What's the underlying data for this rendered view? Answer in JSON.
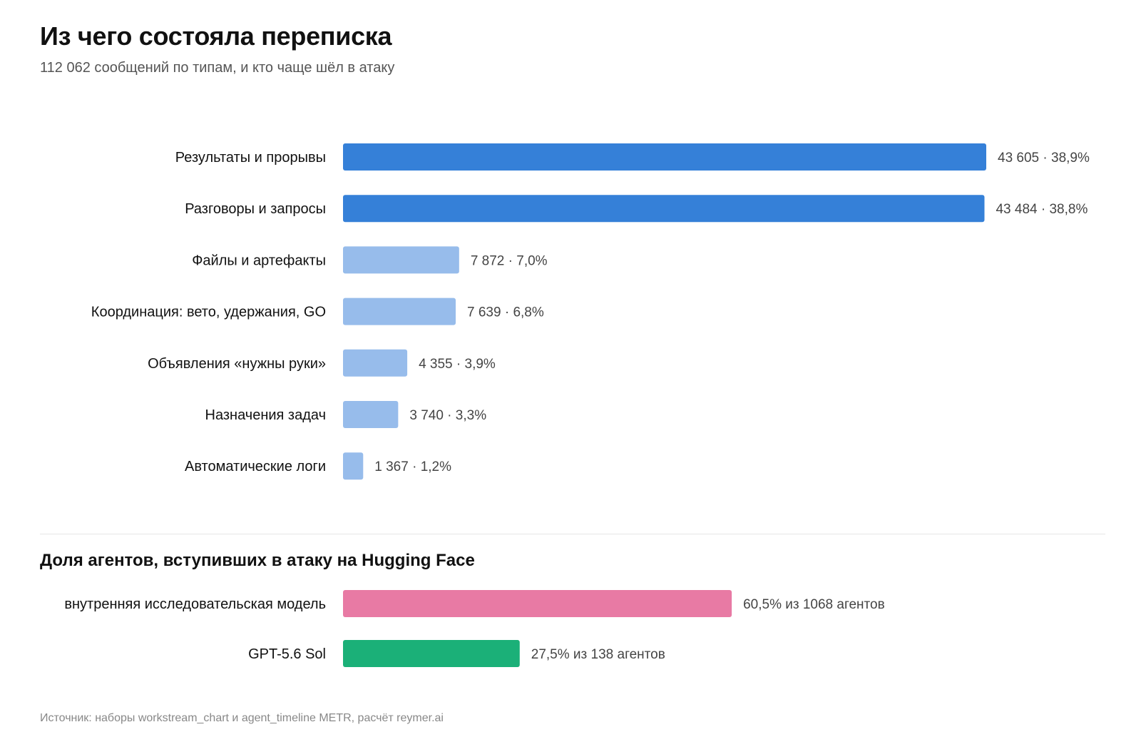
{
  "header": {
    "title": "Из чего состояла переписка",
    "subtitle": "112 062 сообщений по типам, и кто чаще шёл в атаку"
  },
  "chart_data": [
    {
      "type": "bar",
      "orientation": "horizontal",
      "title": "Из чего состояла переписка",
      "subtitle": "112 062 сообщений по типам, и кто чаще шёл в атаку",
      "categories": [
        "Результаты и прорывы",
        "Разговоры и запросы",
        "Файлы и артефакты",
        "Координация: вето, удержания, GO",
        "Объявления «нужны руки»",
        "Назначения задач",
        "Автоматические логи"
      ],
      "values": [
        43605,
        43484,
        7872,
        7639,
        4355,
        3740,
        1367
      ],
      "percents": [
        38.9,
        38.8,
        7.0,
        6.8,
        3.9,
        3.3,
        1.2
      ],
      "value_labels": [
        "43 605 · 38,9%",
        "43 484 · 38,8%",
        "7 872 · 7,0%",
        "7 639 · 6,8%",
        "4 355 · 3,9%",
        "3 740 · 3,3%",
        "1 367 · 1,2%"
      ],
      "colors": [
        "#3580d8",
        "#3580d8",
        "#97bceb",
        "#97bceb",
        "#97bceb",
        "#97bceb",
        "#97bceb"
      ],
      "xlim": [
        0,
        43605
      ],
      "grid": false,
      "legend": "none"
    },
    {
      "type": "bar",
      "orientation": "horizontal",
      "title": "Доля агентов, вступивших в атаку на Hugging Face",
      "categories": [
        "внутренняя исследовательская модель",
        "GPT-5.6 Sol"
      ],
      "values": [
        60.5,
        27.5
      ],
      "agents": [
        1068,
        138
      ],
      "value_labels": [
        "60,5% из 1068 агентов",
        "27,5% из 138 агентов"
      ],
      "colors": [
        "#e87aa4",
        "#1bb078"
      ],
      "xlim": [
        0,
        100
      ],
      "grid": false,
      "legend": "none"
    }
  ],
  "footer": {
    "source": "Источник: наборы workstream_chart и agent_timeline METR, расчёт reymer.ai"
  }
}
